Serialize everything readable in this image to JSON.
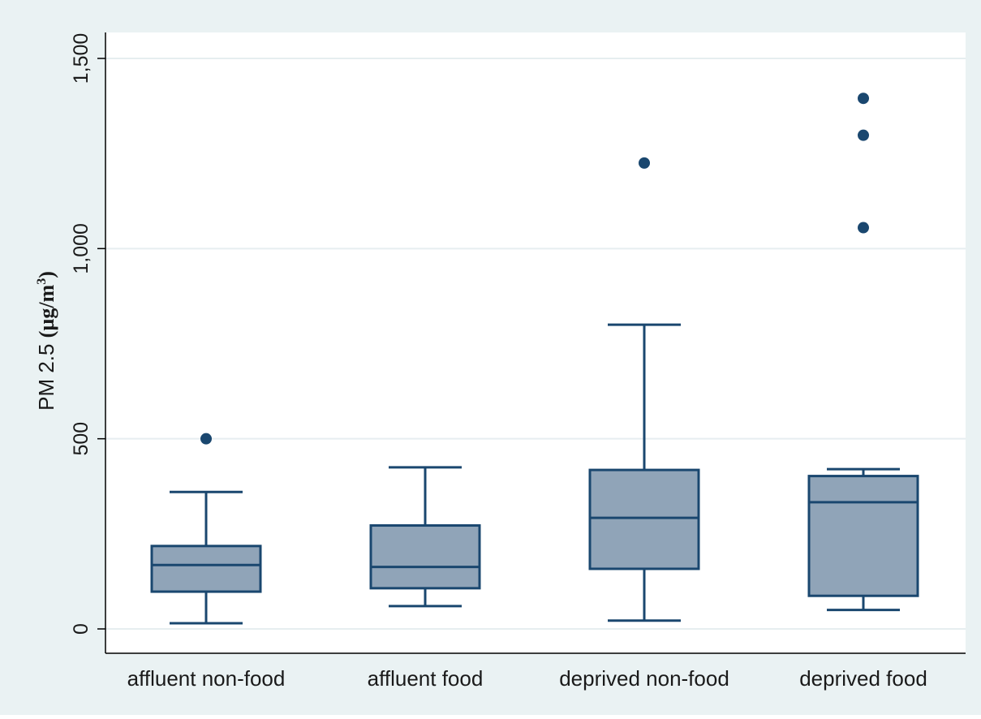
{
  "chart_data": {
    "type": "boxplot",
    "title": "",
    "xlabel": "",
    "ylabel": {
      "main": "PM 2.5 ",
      "unit_prefix": "(µg/m",
      "unit_sup": "3",
      "unit_suffix": ")"
    },
    "ylim": [
      0,
      1500
    ],
    "yticks": [
      {
        "value": 0,
        "label": "0"
      },
      {
        "value": 500,
        "label": "500"
      },
      {
        "value": 1000,
        "label": "1,000"
      },
      {
        "value": 1500,
        "label": "1,500"
      }
    ],
    "grid": true,
    "categories": [
      "affluent non-food",
      "affluent food",
      "deprived non-food",
      "deprived food"
    ],
    "boxes": [
      {
        "category": "affluent non-food",
        "whisker_low": 15,
        "q1": 98,
        "median": 168,
        "q3": 218,
        "whisker_high": 360,
        "outliers": [
          500
        ]
      },
      {
        "category": "affluent food",
        "whisker_low": 60,
        "q1": 107,
        "median": 163,
        "q3": 272,
        "whisker_high": 425,
        "outliers": []
      },
      {
        "category": "deprived non-food",
        "whisker_low": 22,
        "q1": 158,
        "median": 292,
        "q3": 418,
        "whisker_high": 800,
        "outliers": [
          1225
        ]
      },
      {
        "category": "deprived food",
        "whisker_low": 50,
        "q1": 87,
        "median": 333,
        "q3": 402,
        "whisker_high": 420,
        "outliers": [
          1055,
          1298,
          1395
        ]
      }
    ],
    "colors": {
      "outer_background": "#eaf2f3",
      "plot_background": "#ffffff",
      "grid": "#e6eef0",
      "box_fill": "#90a4b8",
      "box_stroke": "#1a476f",
      "outlier": "#1a476f",
      "axis": "#000000"
    }
  }
}
